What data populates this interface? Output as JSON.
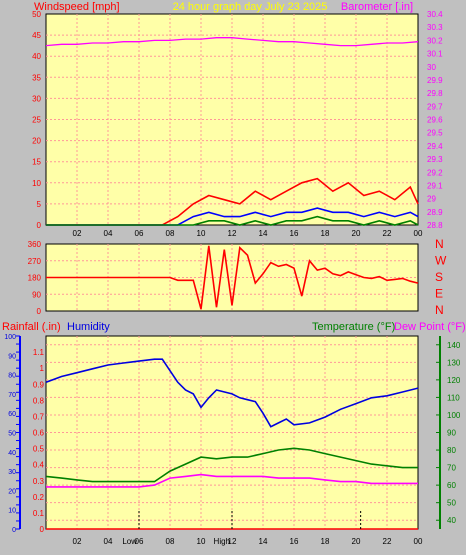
{
  "colors": {
    "background": "#c0c0c0",
    "plot_bg": "#ffffa8",
    "grid": "#ff9898",
    "wind_avg": "#0000ff",
    "wind_gust": "#ff0000",
    "wind_low": "#008000",
    "barometer": "#ff00ff",
    "direction": "#ff0000",
    "humidity": "#0000e0",
    "temperature": "#008000",
    "dew_point": "#ff00ff",
    "rainfall": "#ff0000",
    "title": "#ffff00"
  },
  "texts": {
    "windspeed_label": "Windspeed [mph]",
    "graph_title": "24 hour graph day   July 23 2025",
    "barometer_label": "Barometer [.in]",
    "rainfall_label": "Rainfall (.in)",
    "humidity_label": "Humidity",
    "temperature_label": "Temperature (°F)",
    "dew_point_label": "Dew Point (°F)",
    "compass": [
      "N",
      "W",
      "S",
      "E",
      "N"
    ],
    "low_tide_label": "Low",
    "high_tide_label": "High"
  },
  "chart_data": [
    {
      "type": "line",
      "name": "wind-barometer",
      "x_ticks": [
        "02",
        "04",
        "06",
        "08",
        "10",
        "12",
        "14",
        "16",
        "18",
        "20",
        "22",
        "00"
      ],
      "xlim": [
        0,
        24
      ],
      "ylim": [
        0,
        50
      ],
      "y_ticks": [
        0,
        5,
        10,
        15,
        20,
        25,
        30,
        35,
        40,
        45,
        50
      ],
      "y2lim": [
        28.8,
        30.4
      ],
      "y2_ticks": [
        28.8,
        28.9,
        29.0,
        29.1,
        29.2,
        29.3,
        29.4,
        29.5,
        29.6,
        29.7,
        29.8,
        29.9,
        30.0,
        30.1,
        30.2,
        30.3,
        30.4
      ],
      "y2_tick_labels": [
        "28.8",
        "28.9",
        "29",
        "29.1",
        "29.2",
        "29.3",
        "29.4",
        "29.5",
        "29.6",
        "29.7",
        "29.8",
        "29.9",
        "30",
        "30.1",
        "30.2",
        "30.3",
        "30.4"
      ],
      "grid": true,
      "series": [
        {
          "key": "barometer",
          "axis": "y2",
          "x": [
            0,
            1,
            2,
            3,
            4,
            5,
            6,
            7,
            8,
            9,
            10,
            11,
            12,
            13,
            14,
            15,
            16,
            17,
            18,
            19,
            20,
            21,
            22,
            23,
            24
          ],
          "values": [
            30.16,
            30.17,
            30.17,
            30.18,
            30.18,
            30.19,
            30.19,
            30.2,
            30.2,
            30.21,
            30.21,
            30.22,
            30.22,
            30.21,
            30.2,
            30.19,
            30.19,
            30.18,
            30.17,
            30.16,
            30.16,
            30.17,
            30.18,
            30.18,
            30.19
          ]
        },
        {
          "key": "wind_gust",
          "axis": "y",
          "x": [
            0,
            7.5,
            8.5,
            9.5,
            10.5,
            11.5,
            12.5,
            13.5,
            14.5,
            15.5,
            16.5,
            17.5,
            18.5,
            19.5,
            20.5,
            21.5,
            22.5,
            23.5,
            24
          ],
          "values": [
            0,
            0,
            2,
            5,
            7,
            6,
            5,
            8,
            6,
            8,
            10,
            11,
            8,
            10,
            7,
            8,
            6,
            9,
            5
          ]
        },
        {
          "key": "wind_avg",
          "axis": "y",
          "x": [
            0,
            8.5,
            9.5,
            10.5,
            11.5,
            12.5,
            13.5,
            14.5,
            15.5,
            16.5,
            17.5,
            18.5,
            19.5,
            20.5,
            21.5,
            22.5,
            23.5,
            24
          ],
          "values": [
            0,
            0,
            2,
            3,
            2,
            2,
            3,
            2,
            3,
            3,
            4,
            3,
            3,
            2,
            3,
            2,
            3,
            2
          ]
        },
        {
          "key": "wind_low",
          "axis": "y",
          "x": [
            0,
            9.5,
            10.5,
            11.5,
            12.5,
            13.5,
            14.5,
            15.5,
            16.5,
            17.5,
            18.5,
            19.5,
            20.5,
            21.5,
            22.5,
            23.5,
            24
          ],
          "values": [
            0,
            0,
            1,
            1,
            0,
            1,
            0,
            1,
            1,
            2,
            1,
            1,
            0,
            1,
            0,
            1,
            0
          ]
        }
      ]
    },
    {
      "type": "line",
      "name": "wind-direction",
      "xlim": [
        0,
        24
      ],
      "ylim": [
        0,
        360
      ],
      "y_ticks": [
        0,
        90,
        180,
        270,
        360
      ],
      "grid": true,
      "series": [
        {
          "key": "direction",
          "x": [
            0,
            7.5,
            8,
            8.5,
            9.5,
            10,
            10.5,
            11,
            11.5,
            12,
            12.5,
            13,
            13.5,
            14,
            14.5,
            15,
            15.5,
            16,
            16.5,
            17,
            17.5,
            18,
            18.5,
            19,
            19.5,
            20,
            20.5,
            21,
            21.5,
            22,
            22.5,
            23,
            23.5,
            24
          ],
          "values": [
            180,
            180,
            180,
            165,
            165,
            10,
            350,
            20,
            330,
            30,
            340,
            300,
            150,
            200,
            260,
            240,
            250,
            230,
            80,
            270,
            220,
            230,
            200,
            190,
            210,
            195,
            180,
            175,
            185,
            165,
            170,
            175,
            160,
            150
          ]
        }
      ]
    },
    {
      "type": "line",
      "name": "temperature-humidity-rain",
      "x_ticks": [
        "02",
        "04",
        "06",
        "08",
        "10",
        "12",
        "14",
        "16",
        "18",
        "20",
        "22",
        "00"
      ],
      "xlim": [
        0,
        24
      ],
      "rain_lim": [
        0,
        1.2
      ],
      "rain_ticks": [
        0,
        0.05,
        0.1,
        0.15,
        0.2,
        0.25,
        0.3,
        0.35,
        0.4,
        0.45,
        0.5,
        0.55,
        0.6,
        0.65,
        0.7,
        0.75,
        0.8,
        0.85,
        0.9,
        0.95,
        1,
        1.05,
        1.1,
        1.15,
        1.2
      ],
      "rain_labels": [
        "0",
        "0.1",
        "0.2",
        "0.3",
        "0.4",
        "0.5",
        "0.6",
        "0.7",
        "0.8",
        "0.9",
        "1",
        "1.1"
      ],
      "humidity_lim": [
        0,
        100
      ],
      "humidity_ticks": [
        0,
        10,
        20,
        30,
        40,
        50,
        60,
        70,
        80,
        90,
        100
      ],
      "temp_lim": [
        35,
        145
      ],
      "temp_ticks": [
        40,
        50,
        60,
        70,
        80,
        90,
        100,
        110,
        120,
        130,
        140
      ],
      "grid": true,
      "series": [
        {
          "key": "humidity",
          "axis": "humidity",
          "x": [
            0,
            1,
            2,
            3,
            4,
            5,
            6,
            7,
            7.5,
            8,
            8.5,
            9,
            9.5,
            10,
            10.5,
            11,
            12,
            12.5,
            13,
            13.5,
            14,
            14.5,
            15,
            15.5,
            16,
            17,
            18,
            19,
            20,
            21,
            22,
            23,
            24
          ],
          "values": [
            76,
            79,
            81,
            83,
            85,
            86,
            87,
            88,
            88,
            82,
            76,
            72,
            70,
            63,
            68,
            72,
            70,
            68,
            67,
            66,
            60,
            53,
            55,
            57,
            54,
            55,
            58,
            62,
            65,
            68,
            69,
            71,
            73
          ]
        },
        {
          "key": "temperature",
          "axis": "temp",
          "x": [
            0,
            1,
            2,
            3,
            4,
            5,
            6,
            7,
            8,
            9,
            10,
            11,
            12,
            13,
            14,
            15,
            16,
            17,
            18,
            19,
            20,
            21,
            22,
            23,
            24
          ],
          "values": [
            65,
            64,
            63,
            62,
            62,
            62,
            62,
            62,
            68,
            72,
            76,
            75,
            76,
            76,
            78,
            80,
            81,
            80,
            78,
            76,
            74,
            72,
            71,
            70,
            70
          ]
        },
        {
          "key": "dew_point",
          "axis": "temp",
          "x": [
            0,
            1,
            2,
            3,
            4,
            5,
            6,
            7,
            8,
            9,
            10,
            11,
            12,
            13,
            14,
            15,
            16,
            17,
            18,
            19,
            20,
            21,
            22,
            23,
            24
          ],
          "values": [
            59,
            59,
            59,
            59,
            59,
            59,
            59,
            60,
            64,
            65,
            66,
            65,
            65,
            65,
            65,
            64,
            64,
            64,
            63,
            62,
            62,
            61,
            61,
            61,
            61
          ]
        },
        {
          "key": "rainfall",
          "axis": "rain",
          "x": [
            0,
            24
          ],
          "values": [
            0,
            0
          ]
        }
      ],
      "tide_markers": [
        {
          "label_key": "low_tide_label",
          "x": 6
        },
        {
          "label_key": "high_tide_label",
          "x": 12
        },
        {
          "x": 20.3
        }
      ]
    }
  ]
}
